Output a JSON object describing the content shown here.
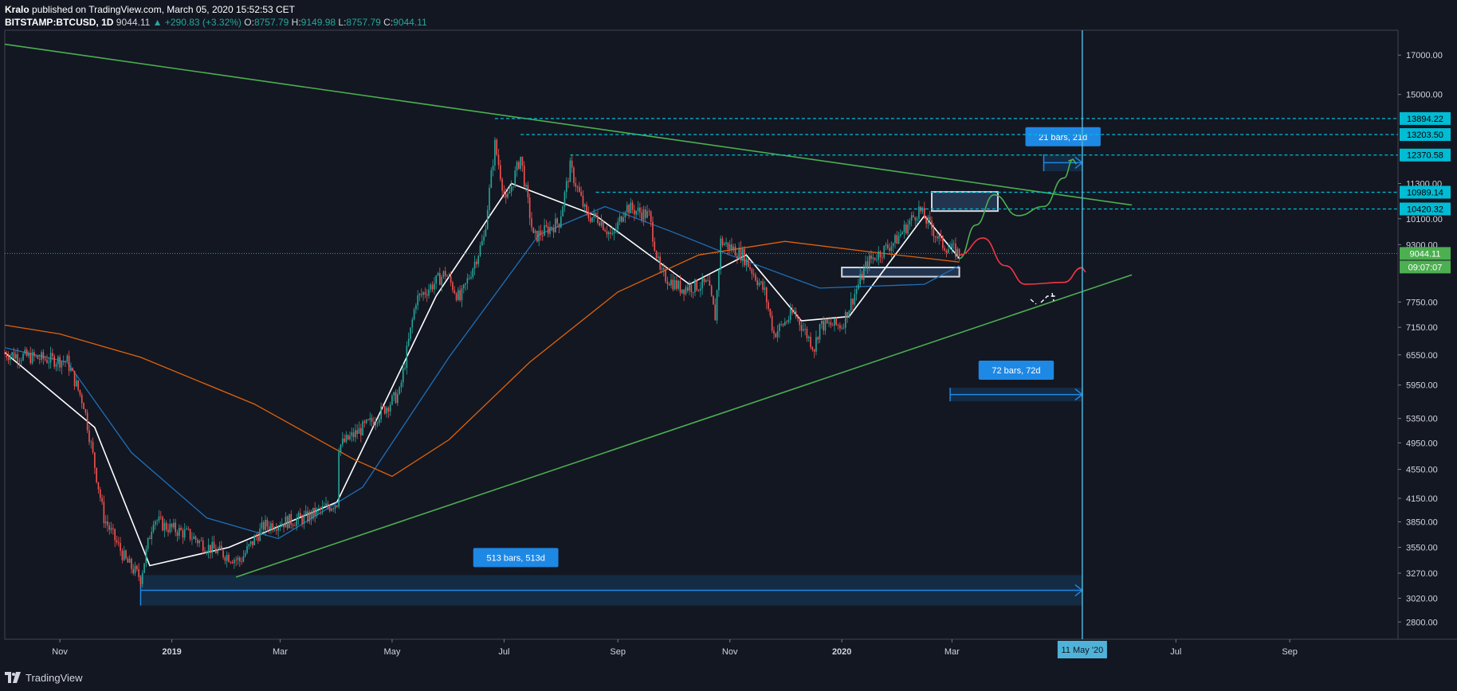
{
  "header": {
    "author": "Kralo",
    "published": "published on TradingView.com, March 05, 2020 15:52:53 CET",
    "symbol": "BITSTAMP:BTCUSD, 1D",
    "last": "9044.11",
    "change": "▲ +290.83 (+3.32%)",
    "o_label": "O:",
    "o_val": "8757.79",
    "h_label": "H:",
    "h_val": "9149.98",
    "l_label": "L:",
    "l_val": "8757.79",
    "c_label": "C:",
    "c_val": "9044.11"
  },
  "footer": {
    "brand": "TradingView"
  },
  "colors": {
    "background": "#131722",
    "up_candle": "#26a69a",
    "down_candle": "#ef5350",
    "ma_fast": "#ffffff",
    "ma_mid": "#1e6fb8",
    "ma_slow": "#e0620a",
    "trendline": "#4caf50",
    "level_line": "#00bcd4",
    "measure_box": "#1e88e5",
    "projection_up": "#4caf50",
    "projection_down": "#f23645"
  },
  "chart_data": {
    "type": "candlestick",
    "symbol": "BITSTAMP:BTCUSD",
    "interval": "1D",
    "y_scale": "log",
    "ylim": [
      2650,
      18400
    ],
    "x_range": [
      "2018-10-02",
      "2020-10-30"
    ],
    "y_ticks": [
      17000,
      15000,
      11300,
      10100,
      9300,
      7750,
      7150,
      6550,
      5950,
      5350,
      4950,
      4550,
      4150,
      3850,
      3550,
      3270,
      3020,
      2800
    ],
    "x_ticks": [
      {
        "date": "2018-11-01",
        "label": "Nov"
      },
      {
        "date": "2019-01-01",
        "label": "2019"
      },
      {
        "date": "2019-03-01",
        "label": "Mar"
      },
      {
        "date": "2019-05-01",
        "label": "May"
      },
      {
        "date": "2019-07-01",
        "label": "Jul"
      },
      {
        "date": "2019-09-01",
        "label": "Sep"
      },
      {
        "date": "2019-11-01",
        "label": "Nov"
      },
      {
        "date": "2020-01-01",
        "label": "2020"
      },
      {
        "date": "2020-03-01",
        "label": "Mar"
      },
      {
        "date": "2020-07-01",
        "label": "Jul"
      },
      {
        "date": "2020-09-01",
        "label": "Sep"
      }
    ],
    "price_path": [
      [
        "2018-10-02",
        6580
      ],
      [
        "2018-10-20",
        6480
      ],
      [
        "2018-11-05",
        6420
      ],
      [
        "2018-11-14",
        5600
      ],
      [
        "2018-11-20",
        4600
      ],
      [
        "2018-11-25",
        3900
      ],
      [
        "2018-12-07",
        3400
      ],
      [
        "2018-12-15",
        3220
      ],
      [
        "2018-12-22",
        3900
      ],
      [
        "2018-12-28",
        3800
      ],
      [
        "2019-01-10",
        3700
      ],
      [
        "2019-01-20",
        3560
      ],
      [
        "2019-02-07",
        3400
      ],
      [
        "2019-02-20",
        3800
      ],
      [
        "2019-03-15",
        3900
      ],
      [
        "2019-04-01",
        4100
      ],
      [
        "2019-04-02",
        4900
      ],
      [
        "2019-04-20",
        5300
      ],
      [
        "2019-05-05",
        5800
      ],
      [
        "2019-05-14",
        7800
      ],
      [
        "2019-05-30",
        8500
      ],
      [
        "2019-06-07",
        7800
      ],
      [
        "2019-06-20",
        9500
      ],
      [
        "2019-06-26",
        12800
      ],
      [
        "2019-07-02",
        10600
      ],
      [
        "2019-07-10",
        12300
      ],
      [
        "2019-07-17",
        9500
      ],
      [
        "2019-07-31",
        10000
      ],
      [
        "2019-08-06",
        11900
      ],
      [
        "2019-08-15",
        10200
      ],
      [
        "2019-08-22",
        10100
      ],
      [
        "2019-08-29",
        9500
      ],
      [
        "2019-09-05",
        10500
      ],
      [
        "2019-09-18",
        10200
      ],
      [
        "2019-09-24",
        8500
      ],
      [
        "2019-10-05",
        8100
      ],
      [
        "2019-10-20",
        8200
      ],
      [
        "2019-10-24",
        7400
      ],
      [
        "2019-10-27",
        9400
      ],
      [
        "2019-11-08",
        9000
      ],
      [
        "2019-11-20",
        8000
      ],
      [
        "2019-11-25",
        7000
      ],
      [
        "2019-12-06",
        7500
      ],
      [
        "2019-12-17",
        6700
      ],
      [
        "2019-12-20",
        7200
      ],
      [
        "2020-01-01",
        7200
      ],
      [
        "2020-01-15",
        8800
      ],
      [
        "2020-01-30",
        9400
      ],
      [
        "2020-02-12",
        10400
      ],
      [
        "2020-02-25",
        9300
      ],
      [
        "2020-03-05",
        9044
      ]
    ],
    "moving_averages": [
      {
        "color": "#ffffff",
        "points": [
          [
            "2018-10-02",
            6600
          ],
          [
            "2018-11-20",
            5200
          ],
          [
            "2018-12-20",
            3350
          ],
          [
            "2019-02-01",
            3550
          ],
          [
            "2019-04-01",
            4100
          ],
          [
            "2019-05-25",
            7900
          ],
          [
            "2019-07-05",
            11300
          ],
          [
            "2019-08-20",
            10200
          ],
          [
            "2019-10-10",
            8200
          ],
          [
            "2019-11-10",
            9000
          ],
          [
            "2019-12-10",
            7300
          ],
          [
            "2020-01-05",
            7400
          ],
          [
            "2020-02-15",
            10200
          ],
          [
            "2020-03-05",
            8900
          ]
        ]
      },
      {
        "color": "#1e6fb8",
        "points": [
          [
            "2018-10-02",
            6700
          ],
          [
            "2018-11-05",
            6400
          ],
          [
            "2018-12-10",
            4800
          ],
          [
            "2019-01-20",
            3900
          ],
          [
            "2019-02-28",
            3650
          ],
          [
            "2019-04-15",
            4300
          ],
          [
            "2019-06-01",
            6500
          ],
          [
            "2019-07-20",
            9600
          ],
          [
            "2019-08-25",
            10500
          ],
          [
            "2019-09-30",
            9700
          ],
          [
            "2019-11-01",
            9000
          ],
          [
            "2019-12-20",
            8100
          ],
          [
            "2020-02-15",
            8200
          ],
          [
            "2020-03-05",
            8700
          ]
        ]
      },
      {
        "color": "#e0620a",
        "points": [
          [
            "2018-10-02",
            7200
          ],
          [
            "2018-11-01",
            7000
          ],
          [
            "2018-12-15",
            6500
          ],
          [
            "2019-02-15",
            5600
          ],
          [
            "2019-04-10",
            4700
          ],
          [
            "2019-05-01",
            4450
          ],
          [
            "2019-06-01",
            5000
          ],
          [
            "2019-07-15",
            6400
          ],
          [
            "2019-09-01",
            8000
          ],
          [
            "2019-10-15",
            9000
          ],
          [
            "2019-12-01",
            9400
          ],
          [
            "2020-01-15",
            9100
          ],
          [
            "2020-03-05",
            8800
          ]
        ]
      }
    ],
    "trendlines": [
      {
        "from": [
          "2018-10-02",
          17600
        ],
        "to": [
          "2020-06-07",
          10550
        ]
      },
      {
        "from": [
          "2019-02-05",
          3230
        ],
        "to": [
          "2020-06-07",
          8450
        ]
      }
    ],
    "horizontal_levels": [
      {
        "from_date": "2019-06-26",
        "value": 13894.22,
        "label": "13894.22"
      },
      {
        "from_date": "2019-07-10",
        "value": 13203.5,
        "label": "13203.50"
      },
      {
        "from_date": "2019-08-06",
        "value": 12370.58,
        "label": "12370.58"
      },
      {
        "from_date": "2019-08-20",
        "value": 10989.14,
        "label": "10989.14"
      },
      {
        "from_date": "2019-10-26",
        "value": 10420.32,
        "label": "10420.32"
      }
    ],
    "current_price": {
      "value": 9044.11,
      "label": "9044.11",
      "countdown": "09:07:07"
    },
    "vertical_marker": {
      "date": "2020-05-11",
      "label": "11 May '20"
    },
    "zones": [
      {
        "from": "2020-02-19",
        "to": "2020-03-26",
        "top": 11000,
        "bottom": 10350
      },
      {
        "from": "2020-01-01",
        "to": "2020-03-05",
        "top": 8650,
        "bottom": 8400
      }
    ],
    "date_ranges": [
      {
        "from": "2018-12-15",
        "to": "2020-05-11",
        "top": 3250,
        "bottom": 2950,
        "label": "513 bars, 513d"
      },
      {
        "from": "2020-02-29",
        "to": "2020-05-11",
        "top": 5900,
        "bottom": 5650,
        "label": "72 bars, 72d"
      },
      {
        "from": "2020-04-20",
        "to": "2020-05-11",
        "top": 12400,
        "bottom": 11750,
        "label": "21 bars, 21d"
      }
    ],
    "projections": [
      {
        "color": "#4caf50",
        "points": [
          [
            "2020-03-05",
            8900
          ],
          [
            "2020-03-14",
            9900
          ],
          [
            "2020-03-24",
            10900
          ],
          [
            "2020-04-06",
            10200
          ],
          [
            "2020-04-20",
            10500
          ],
          [
            "2020-05-01",
            11500
          ],
          [
            "2020-05-06",
            12200
          ]
        ]
      },
      {
        "color": "#f23645",
        "points": [
          [
            "2020-03-05",
            9000
          ],
          [
            "2020-03-18",
            9500
          ],
          [
            "2020-03-30",
            8700
          ],
          [
            "2020-04-10",
            8200
          ],
          [
            "2020-05-01",
            8250
          ],
          [
            "2020-05-11",
            8650
          ]
        ]
      }
    ]
  }
}
